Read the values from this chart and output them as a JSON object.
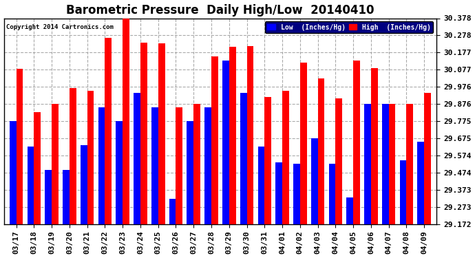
{
  "title": "Barometric Pressure  Daily High/Low  20140410",
  "copyright": "Copyright 2014 Cartronics.com",
  "legend_low": "Low  (Inches/Hg)",
  "legend_high": "High  (Inches/Hg)",
  "ylim": [
    29.172,
    30.378
  ],
  "yticks": [
    29.172,
    29.273,
    29.373,
    29.474,
    29.574,
    29.675,
    29.775,
    29.876,
    29.976,
    30.077,
    30.177,
    30.278,
    30.378
  ],
  "dates": [
    "03/17",
    "03/18",
    "03/19",
    "03/20",
    "03/21",
    "03/22",
    "03/23",
    "03/24",
    "03/25",
    "03/26",
    "03/27",
    "03/28",
    "03/29",
    "03/30",
    "03/31",
    "04/01",
    "04/02",
    "04/03",
    "04/04",
    "04/05",
    "04/06",
    "04/07",
    "04/08",
    "04/09"
  ],
  "low": [
    29.775,
    29.625,
    29.49,
    29.49,
    29.635,
    29.855,
    29.775,
    29.94,
    29.855,
    29.32,
    29.775,
    29.855,
    30.13,
    29.94,
    29.625,
    29.535,
    29.525,
    29.675,
    29.525,
    29.33,
    29.875,
    29.875,
    29.545,
    29.655
  ],
  "high": [
    30.08,
    29.83,
    29.875,
    29.97,
    29.955,
    30.265,
    30.378,
    30.235,
    30.23,
    29.855,
    29.875,
    30.155,
    30.21,
    30.215,
    29.915,
    29.955,
    30.12,
    30.025,
    29.91,
    30.13,
    30.085,
    29.875,
    29.875,
    29.94
  ],
  "low_color": "#0000ff",
  "high_color": "#ff0000",
  "background_color": "#ffffff",
  "grid_color": "#aaaaaa",
  "title_fontsize": 12,
  "tick_fontsize": 8,
  "bar_width": 0.38,
  "legend_bg": "#000080",
  "legend_text_color": "#ffffff"
}
